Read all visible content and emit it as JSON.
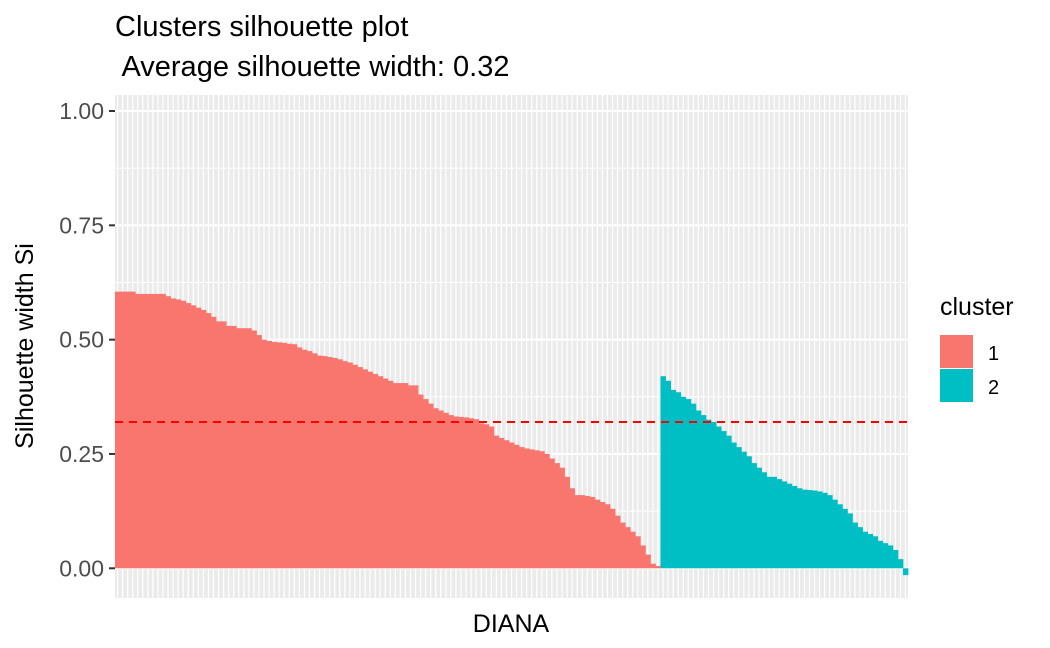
{
  "chart_data": {
    "type": "bar",
    "title": "Clusters silhouette plot",
    "subtitle": " Average silhouette width: 0.32",
    "xlabel": "DIANA",
    "ylabel": "Silhouette width Si",
    "ylim": [
      -0.065,
      1.035
    ],
    "yticks": [
      "0.00",
      "0.25",
      "0.50",
      "0.75",
      "1.00"
    ],
    "grid": true,
    "legend_position": "right",
    "legend_title": "cluster",
    "average_line": 0.32,
    "colors": {
      "1": "#F8766D",
      "2": "#00BFC4",
      "average_line": "#FF0000",
      "panel": "#EBEBEB",
      "grid": "#FFFFFF"
    },
    "series": [
      {
        "name": "1",
        "values": [
          0.605,
          0.605,
          0.605,
          0.605,
          0.6,
          0.6,
          0.6,
          0.6,
          0.6,
          0.6,
          0.595,
          0.59,
          0.588,
          0.585,
          0.58,
          0.575,
          0.57,
          0.565,
          0.558,
          0.55,
          0.54,
          0.54,
          0.53,
          0.53,
          0.525,
          0.525,
          0.525,
          0.52,
          0.51,
          0.5,
          0.497,
          0.495,
          0.494,
          0.493,
          0.491,
          0.49,
          0.483,
          0.478,
          0.475,
          0.47,
          0.465,
          0.464,
          0.462,
          0.46,
          0.457,
          0.453,
          0.45,
          0.445,
          0.44,
          0.435,
          0.43,
          0.425,
          0.42,
          0.415,
          0.41,
          0.405,
          0.405,
          0.405,
          0.4,
          0.4,
          0.38,
          0.37,
          0.36,
          0.35,
          0.345,
          0.34,
          0.335,
          0.332,
          0.331,
          0.33,
          0.328,
          0.326,
          0.317,
          0.315,
          0.31,
          0.29,
          0.285,
          0.28,
          0.275,
          0.27,
          0.265,
          0.262,
          0.26,
          0.258,
          0.256,
          0.25,
          0.24,
          0.23,
          0.22,
          0.2,
          0.175,
          0.16,
          0.16,
          0.158,
          0.156,
          0.15,
          0.145,
          0.14,
          0.13,
          0.115,
          0.1,
          0.09,
          0.08,
          0.07,
          0.05,
          0.03,
          0.01,
          0.005
        ]
      },
      {
        "name": "2",
        "values": [
          0.42,
          0.41,
          0.39,
          0.385,
          0.375,
          0.37,
          0.36,
          0.345,
          0.335,
          0.325,
          0.32,
          0.31,
          0.3,
          0.29,
          0.275,
          0.265,
          0.255,
          0.245,
          0.23,
          0.22,
          0.21,
          0.2,
          0.2,
          0.195,
          0.19,
          0.185,
          0.18,
          0.175,
          0.172,
          0.171,
          0.17,
          0.168,
          0.165,
          0.16,
          0.15,
          0.14,
          0.13,
          0.12,
          0.1,
          0.09,
          0.08,
          0.075,
          0.07,
          0.06,
          0.055,
          0.05,
          0.04,
          0.02,
          -0.015
        ]
      }
    ]
  }
}
